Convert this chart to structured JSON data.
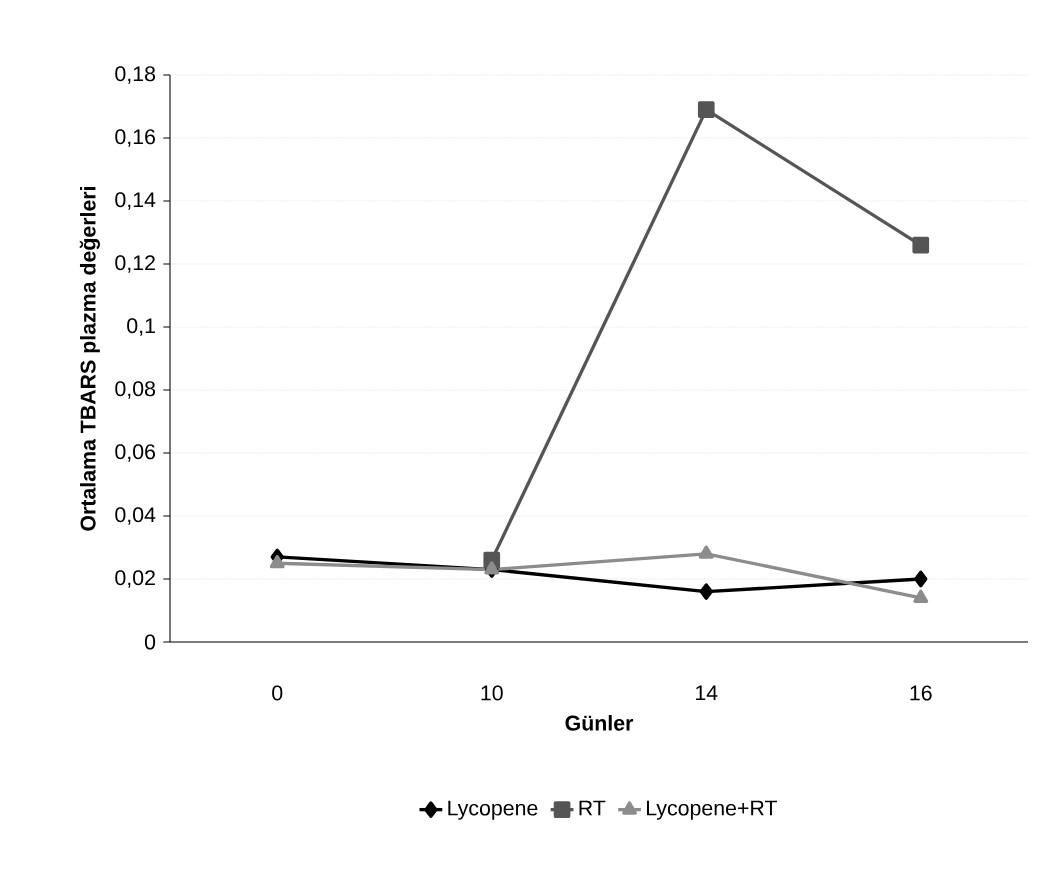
{
  "chart_data": {
    "type": "line",
    "xlabel": "Günler",
    "ylabel": "Ortalama TBARS  plazma değerleri",
    "categories": [
      "0",
      "10",
      "14",
      "16"
    ],
    "series": [
      {
        "name": "Lycopene",
        "color": "#000000",
        "marker": "diamond",
        "values": [
          0.027,
          0.023,
          0.016,
          0.02
        ]
      },
      {
        "name": "RT",
        "color": "#555555",
        "marker": "square",
        "values": [
          null,
          0.026,
          0.169,
          0.126
        ]
      },
      {
        "name": "Lycopene+RT",
        "color": "#8c8c8c",
        "marker": "triangle",
        "values": [
          0.025,
          0.023,
          0.028,
          0.014
        ]
      }
    ],
    "ylim": [
      0,
      0.18
    ],
    "yticks": [
      0,
      {
        "value": 0.02,
        "label": "0,02"
      },
      {
        "value": 0.04,
        "label": "0,04"
      },
      {
        "value": 0.06,
        "label": "0,06"
      },
      {
        "value": 0.08,
        "label": "0,08"
      },
      {
        "value": 0.1,
        "label": "0,1"
      },
      {
        "value": 0.12,
        "label": "0,12"
      },
      {
        "value": 0.14,
        "label": "0,14"
      },
      {
        "value": 0.16,
        "label": "0,16"
      },
      {
        "value": 0.18,
        "label": "0,18"
      }
    ],
    "grid": "y",
    "legend": "bottom",
    "line_style": "solid"
  }
}
